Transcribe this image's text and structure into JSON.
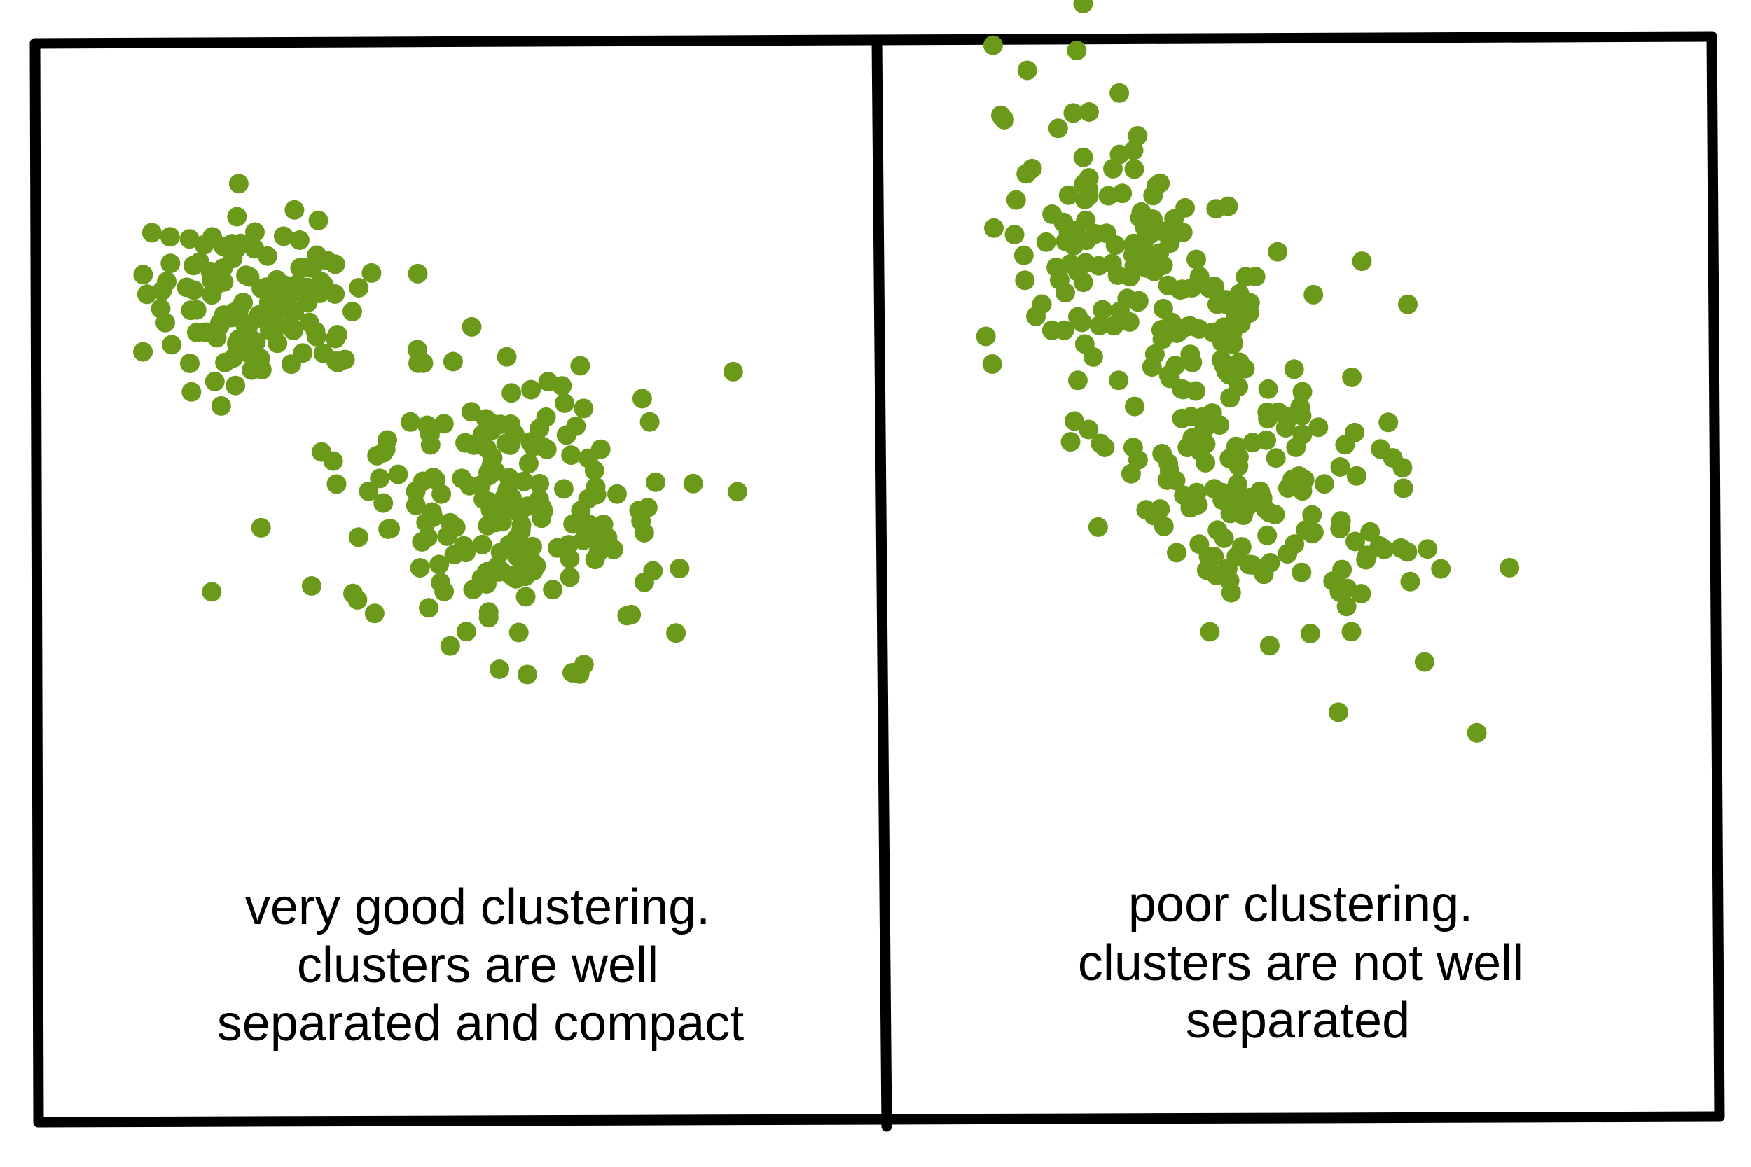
{
  "point_color": "#6b9a1a",
  "frame_color": "#000000",
  "panels": [
    {
      "caption_lines": [
        "very good clustering.",
        "clusters are well",
        "separated and compact"
      ]
    },
    {
      "caption_lines": [
        "poor clustering.",
        "clusters are not well",
        "separated"
      ]
    }
  ]
}
